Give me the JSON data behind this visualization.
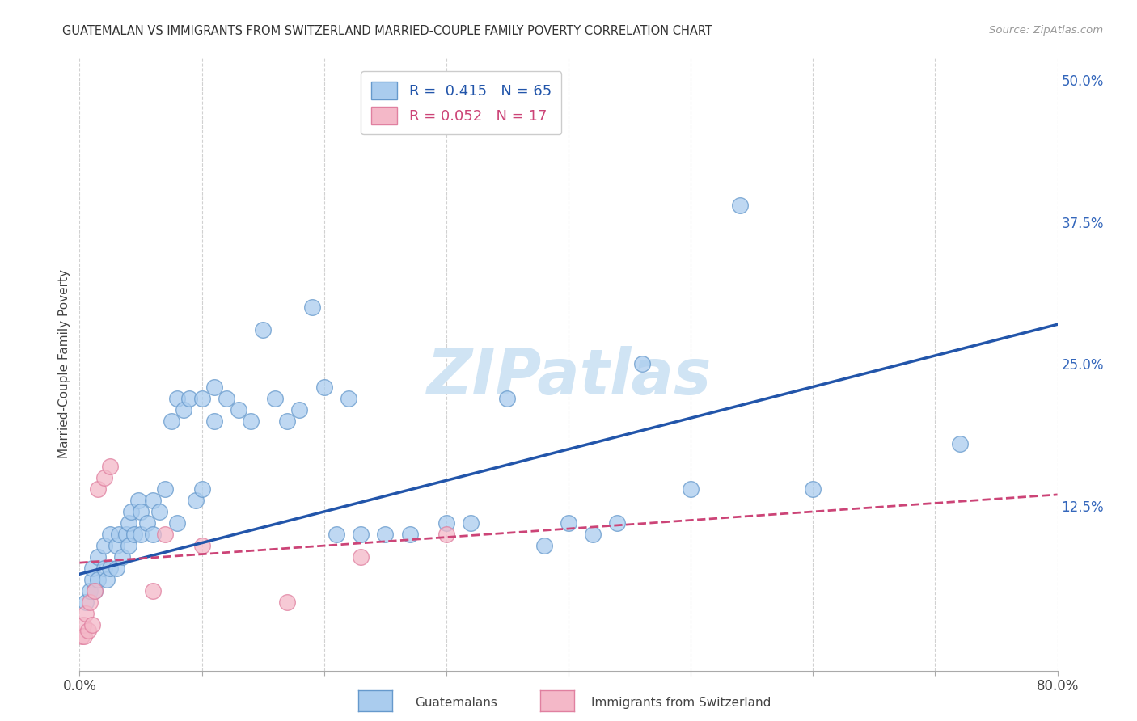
{
  "title": "GUATEMALAN VS IMMIGRANTS FROM SWITZERLAND MARRIED-COUPLE FAMILY POVERTY CORRELATION CHART",
  "source": "Source: ZipAtlas.com",
  "ylabel": "Married-Couple Family Poverty",
  "xlim": [
    0,
    0.8
  ],
  "ylim": [
    -0.02,
    0.52
  ],
  "xticks": [
    0.0,
    0.1,
    0.2,
    0.3,
    0.4,
    0.5,
    0.6,
    0.7,
    0.8
  ],
  "xticklabels": [
    "0.0%",
    "",
    "",
    "",
    "",
    "",
    "",
    "",
    "80.0%"
  ],
  "yticks_right": [
    0.125,
    0.25,
    0.375,
    0.5
  ],
  "yticklabels_right": [
    "12.5%",
    "25.0%",
    "37.5%",
    "50.0%"
  ],
  "blue_R": 0.415,
  "blue_N": 65,
  "pink_R": 0.052,
  "pink_N": 17,
  "blue_color": "#aaccee",
  "pink_color": "#f4b8c8",
  "blue_edge_color": "#6699cc",
  "pink_edge_color": "#e080a0",
  "blue_line_color": "#2255aa",
  "pink_line_color": "#cc4477",
  "watermark": "ZIPatlas",
  "watermark_color": "#d0e4f4",
  "legend_label_blue": "Guatemalans",
  "legend_label_pink": "Immigrants from Switzerland",
  "blue_scatter_x": [
    0.005,
    0.008,
    0.01,
    0.01,
    0.012,
    0.015,
    0.015,
    0.02,
    0.02,
    0.022,
    0.025,
    0.025,
    0.03,
    0.03,
    0.032,
    0.035,
    0.038,
    0.04,
    0.04,
    0.042,
    0.045,
    0.048,
    0.05,
    0.05,
    0.055,
    0.06,
    0.06,
    0.065,
    0.07,
    0.075,
    0.08,
    0.08,
    0.085,
    0.09,
    0.095,
    0.1,
    0.1,
    0.11,
    0.11,
    0.12,
    0.13,
    0.14,
    0.15,
    0.16,
    0.17,
    0.18,
    0.19,
    0.2,
    0.21,
    0.22,
    0.23,
    0.25,
    0.27,
    0.3,
    0.32,
    0.35,
    0.38,
    0.4,
    0.42,
    0.44,
    0.46,
    0.5,
    0.54,
    0.6,
    0.72
  ],
  "blue_scatter_y": [
    0.04,
    0.05,
    0.06,
    0.07,
    0.05,
    0.06,
    0.08,
    0.07,
    0.09,
    0.06,
    0.07,
    0.1,
    0.07,
    0.09,
    0.1,
    0.08,
    0.1,
    0.09,
    0.11,
    0.12,
    0.1,
    0.13,
    0.1,
    0.12,
    0.11,
    0.1,
    0.13,
    0.12,
    0.14,
    0.2,
    0.11,
    0.22,
    0.21,
    0.22,
    0.13,
    0.22,
    0.14,
    0.2,
    0.23,
    0.22,
    0.21,
    0.2,
    0.28,
    0.22,
    0.2,
    0.21,
    0.3,
    0.23,
    0.1,
    0.22,
    0.1,
    0.1,
    0.1,
    0.11,
    0.11,
    0.22,
    0.09,
    0.11,
    0.1,
    0.11,
    0.25,
    0.14,
    0.39,
    0.14,
    0.18
  ],
  "pink_scatter_x": [
    0.002,
    0.003,
    0.004,
    0.005,
    0.007,
    0.008,
    0.01,
    0.012,
    0.015,
    0.02,
    0.025,
    0.06,
    0.07,
    0.1,
    0.17,
    0.23,
    0.3
  ],
  "pink_scatter_y": [
    0.01,
    0.02,
    0.01,
    0.03,
    0.015,
    0.04,
    0.02,
    0.05,
    0.14,
    0.15,
    0.16,
    0.05,
    0.1,
    0.09,
    0.04,
    0.08,
    0.1
  ],
  "blue_trend_x": [
    0.0,
    0.8
  ],
  "blue_trend_y": [
    0.065,
    0.285
  ],
  "pink_trend_x": [
    0.0,
    0.8
  ],
  "pink_trend_y": [
    0.075,
    0.135
  ]
}
